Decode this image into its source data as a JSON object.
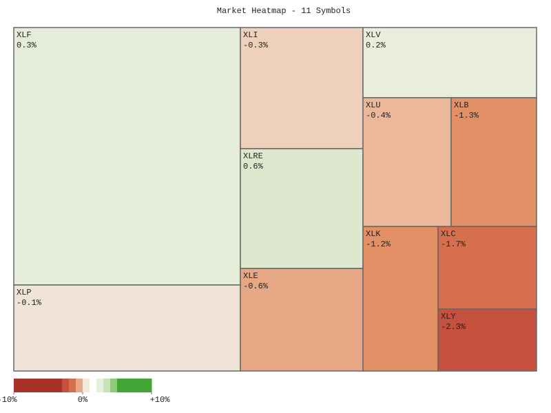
{
  "chart_data": {
    "type": "treemap",
    "title": "Market Heatmap - 11 Symbols",
    "items": [
      {
        "name": "XLF",
        "value": 0.3,
        "value_label": "0.3%",
        "color": "#e5ecd8"
      },
      {
        "name": "XLP",
        "value": -0.1,
        "value_label": "-0.1%",
        "color": "#f0e4d6"
      },
      {
        "name": "XLI",
        "value": -0.3,
        "value_label": "-0.3%",
        "color": "#eed0bb"
      },
      {
        "name": "XLRE",
        "value": 0.6,
        "value_label": "0.6%",
        "color": "#dde8cf"
      },
      {
        "name": "XLE",
        "value": -0.6,
        "value_label": "-0.6%",
        "color": "#e6a785"
      },
      {
        "name": "XLV",
        "value": 0.2,
        "value_label": "0.2%",
        "color": "#e8eddc"
      },
      {
        "name": "XLU",
        "value": -0.4,
        "value_label": "-0.4%",
        "color": "#ecb89c"
      },
      {
        "name": "XLB",
        "value": -1.3,
        "value_label": "-1.3%",
        "color": "#e38f68"
      },
      {
        "name": "XLK",
        "value": -1.2,
        "value_label": "-1.2%",
        "color": "#e39067"
      },
      {
        "name": "XLC",
        "value": -1.7,
        "value_label": "-1.7%",
        "color": "#d66f4d"
      },
      {
        "name": "XLY",
        "value": -2.3,
        "value_label": "-2.3%",
        "color": "#c4503d"
      }
    ],
    "colorbar": {
      "lim": [
        -10,
        10
      ],
      "ticks": [
        {
          "value": -10,
          "label": "-10%"
        },
        {
          "value": 0,
          "label": "0%"
        },
        {
          "value": 10,
          "label": "+10%"
        }
      ],
      "colors": [
        "#a83228",
        "#a83228",
        "#a83228",
        "#a83228",
        "#a83228",
        "#a83228",
        "#a83228",
        "#c4503d",
        "#d66f4d",
        "#e6a785",
        "#f7e7da",
        "#ffffff",
        "#e4f0da",
        "#c5e3b5",
        "#8fca7c",
        "#43a535",
        "#43a535",
        "#43a535",
        "#43a535",
        "#43a535"
      ]
    }
  }
}
